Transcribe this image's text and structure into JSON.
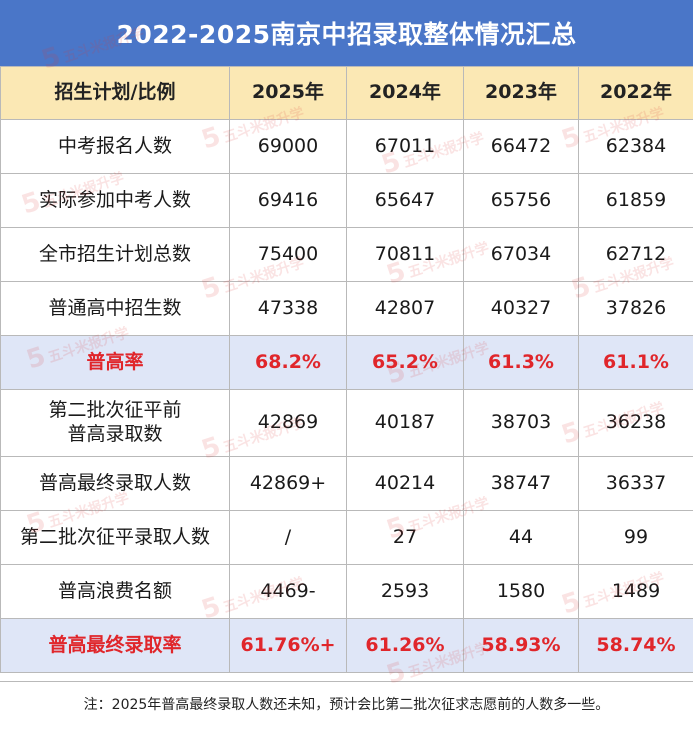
{
  "title": "2022-2025南京中招录取整体情况汇总",
  "header": [
    "招生计划/比例",
    "2025年",
    "2024年",
    "2023年",
    "2022年"
  ],
  "rows": [
    {
      "label": "中考报名人数",
      "values": [
        "69000",
        "67011",
        "66472",
        "62384"
      ],
      "highlight": false
    },
    {
      "label": "实际参加中考人数",
      "values": [
        "69416",
        "65647",
        "65756",
        "61859"
      ],
      "highlight": false
    },
    {
      "label": "全市招生计划总数",
      "values": [
        "75400",
        "70811",
        "67034",
        "62712"
      ],
      "highlight": false
    },
    {
      "label": "普通高中招生数",
      "values": [
        "47338",
        "42807",
        "40327",
        "37826"
      ],
      "highlight": false
    },
    {
      "label": "普高率",
      "values": [
        "68.2%",
        "65.2%",
        "61.3%",
        "61.1%"
      ],
      "highlight": true
    },
    {
      "label_line1": "第二批次征平前",
      "label_line2": "普高录取数",
      "values": [
        "42869",
        "40187",
        "38703",
        "36238"
      ],
      "highlight": false
    },
    {
      "label": "普高最终录取人数",
      "values": [
        "42869+",
        "40214",
        "38747",
        "36337"
      ],
      "highlight": false
    },
    {
      "label": "第二批次征平录取人数",
      "values": [
        "/",
        "27",
        "44",
        "99"
      ],
      "highlight": false
    },
    {
      "label": "普高浪费名额",
      "values": [
        "4469-",
        "2593",
        "1580",
        "1489"
      ],
      "highlight": false
    },
    {
      "label": "普高最终录取率",
      "values": [
        "61.76%+",
        "61.26%",
        "58.93%",
        "58.74%"
      ],
      "highlight": true
    }
  ],
  "note": "注：2025年普高最终录取人数还未知，预计会比第二批次征求志愿前的人数多一些。",
  "watermark": {
    "mark": "5",
    "text": "五斗米报升学"
  },
  "colors": {
    "title_bg": "#4a76c8",
    "header_bg": "#fbe8b4",
    "highlight_bg": "#dfe6f7",
    "highlight_text": "#e0262b",
    "border": "#b9b9b9"
  }
}
